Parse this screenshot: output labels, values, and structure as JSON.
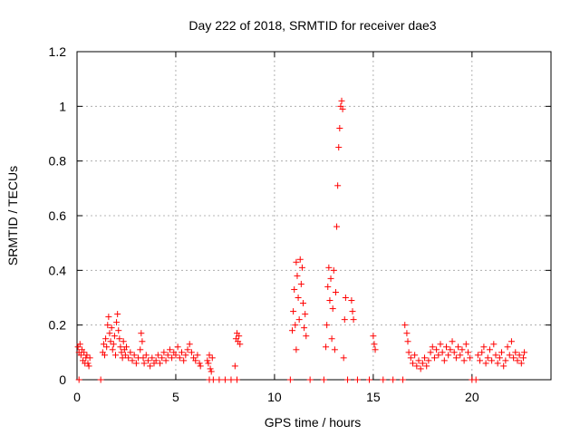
{
  "chart_data": {
    "type": "scatter",
    "title": "Day 222 of 2018, SRMTID for receiver dae3",
    "xlabel": "GPS time / hours",
    "ylabel": "SRMTID / TECUs",
    "xlim": [
      0,
      24
    ],
    "ylim": [
      0,
      1.2
    ],
    "xticks": [
      0,
      5,
      10,
      15,
      20
    ],
    "xtick_labels": [
      "0",
      "5",
      "10",
      "15",
      "20"
    ],
    "yticks": [
      0,
      0.2,
      0.4,
      0.6,
      0.8,
      1.0,
      1.2
    ],
    "ytick_labels": [
      "0",
      "0.2",
      "0.4",
      "0.6",
      "0.8",
      "1",
      "1.2"
    ],
    "grid": true,
    "marker": "+",
    "colors": {
      "series": "#ff0000",
      "grid": "#a0a0a0",
      "axis": "#000000"
    },
    "series": [
      {
        "name": "dae3",
        "points": [
          [
            0.05,
            0.12
          ],
          [
            0.1,
            0.1
          ],
          [
            0.15,
            0.13
          ],
          [
            0.2,
            0.09
          ],
          [
            0.25,
            0.11
          ],
          [
            0.3,
            0.07
          ],
          [
            0.35,
            0.1
          ],
          [
            0.4,
            0.06
          ],
          [
            0.45,
            0.08
          ],
          [
            0.5,
            0.09
          ],
          [
            0.55,
            0.06
          ],
          [
            0.6,
            0.05
          ],
          [
            0.65,
            0.08
          ],
          [
            0.1,
            0.0
          ],
          [
            1.2,
            0.0
          ],
          [
            1.3,
            0.1
          ],
          [
            1.35,
            0.13
          ],
          [
            1.4,
            0.09
          ],
          [
            1.45,
            0.15
          ],
          [
            1.5,
            0.12
          ],
          [
            1.55,
            0.2
          ],
          [
            1.6,
            0.23
          ],
          [
            1.65,
            0.17
          ],
          [
            1.7,
            0.14
          ],
          [
            1.75,
            0.19
          ],
          [
            1.8,
            0.11
          ],
          [
            1.85,
            0.13
          ],
          [
            1.9,
            0.16
          ],
          [
            1.95,
            0.09
          ],
          [
            2.0,
            0.21
          ],
          [
            2.05,
            0.24
          ],
          [
            2.1,
            0.18
          ],
          [
            2.15,
            0.15
          ],
          [
            2.2,
            0.12
          ],
          [
            2.25,
            0.1
          ],
          [
            2.3,
            0.08
          ],
          [
            2.35,
            0.14
          ],
          [
            2.4,
            0.11
          ],
          [
            2.45,
            0.09
          ],
          [
            2.5,
            0.12
          ],
          [
            2.6,
            0.08
          ],
          [
            2.7,
            0.1
          ],
          [
            2.8,
            0.07
          ],
          [
            2.9,
            0.09
          ],
          [
            3.0,
            0.06
          ],
          [
            3.1,
            0.08
          ],
          [
            3.2,
            0.11
          ],
          [
            3.25,
            0.17
          ],
          [
            3.3,
            0.14
          ],
          [
            3.35,
            0.08
          ],
          [
            3.4,
            0.06
          ],
          [
            3.5,
            0.09
          ],
          [
            3.6,
            0.07
          ],
          [
            3.7,
            0.05
          ],
          [
            3.8,
            0.08
          ],
          [
            3.9,
            0.06
          ],
          [
            4.0,
            0.07
          ],
          [
            4.1,
            0.09
          ],
          [
            4.2,
            0.06
          ],
          [
            4.3,
            0.08
          ],
          [
            4.4,
            0.1
          ],
          [
            4.5,
            0.07
          ],
          [
            4.6,
            0.09
          ],
          [
            4.7,
            0.11
          ],
          [
            4.8,
            0.08
          ],
          [
            4.9,
            0.1
          ],
          [
            5.0,
            0.09
          ],
          [
            5.1,
            0.12
          ],
          [
            5.2,
            0.08
          ],
          [
            5.3,
            0.1
          ],
          [
            5.4,
            0.07
          ],
          [
            5.5,
            0.09
          ],
          [
            5.6,
            0.11
          ],
          [
            5.7,
            0.13
          ],
          [
            5.8,
            0.1
          ],
          [
            5.9,
            0.08
          ],
          [
            6.0,
            0.07
          ],
          [
            6.1,
            0.09
          ],
          [
            6.2,
            0.06
          ],
          [
            6.25,
            0.05
          ],
          [
            6.6,
            0.07
          ],
          [
            6.65,
            0.06
          ],
          [
            6.7,
            0.09
          ],
          [
            6.75,
            0.04
          ],
          [
            6.8,
            0.03
          ],
          [
            6.85,
            0.08
          ],
          [
            6.7,
            0.0
          ],
          [
            6.9,
            0.0
          ],
          [
            7.2,
            0.0
          ],
          [
            7.5,
            0.0
          ],
          [
            7.8,
            0.0
          ],
          [
            8.0,
            0.05
          ],
          [
            8.05,
            0.15
          ],
          [
            8.1,
            0.17
          ],
          [
            8.15,
            0.14
          ],
          [
            8.2,
            0.16
          ],
          [
            8.25,
            0.13
          ],
          [
            8.1,
            0.0
          ],
          [
            10.8,
            0.0
          ],
          [
            10.9,
            0.18
          ],
          [
            10.95,
            0.25
          ],
          [
            11.0,
            0.33
          ],
          [
            11.05,
            0.2
          ],
          [
            11.1,
            0.43
          ],
          [
            11.15,
            0.38
          ],
          [
            11.2,
            0.3
          ],
          [
            11.25,
            0.22
          ],
          [
            11.3,
            0.44
          ],
          [
            11.35,
            0.35
          ],
          [
            11.4,
            0.41
          ],
          [
            11.45,
            0.28
          ],
          [
            11.5,
            0.19
          ],
          [
            11.55,
            0.24
          ],
          [
            11.6,
            0.16
          ],
          [
            11.1,
            0.11
          ],
          [
            11.8,
            0.0
          ],
          [
            12.5,
            0.0
          ],
          [
            12.6,
            0.12
          ],
          [
            12.65,
            0.2
          ],
          [
            12.7,
            0.34
          ],
          [
            12.75,
            0.41
          ],
          [
            12.8,
            0.29
          ],
          [
            12.85,
            0.37
          ],
          [
            12.9,
            0.15
          ],
          [
            12.95,
            0.26
          ],
          [
            13.0,
            0.4
          ],
          [
            13.05,
            0.11
          ],
          [
            13.1,
            0.32
          ],
          [
            13.15,
            0.56
          ],
          [
            13.2,
            0.71
          ],
          [
            13.25,
            0.85
          ],
          [
            13.3,
            0.92
          ],
          [
            13.35,
            1.0
          ],
          [
            13.4,
            1.02
          ],
          [
            13.45,
            0.99
          ],
          [
            13.5,
            0.08
          ],
          [
            13.55,
            0.22
          ],
          [
            13.6,
            0.3
          ],
          [
            13.7,
            0.0
          ],
          [
            13.9,
            0.29
          ],
          [
            13.95,
            0.25
          ],
          [
            14.0,
            0.22
          ],
          [
            14.2,
            0.0
          ],
          [
            14.8,
            0.0
          ],
          [
            15.0,
            0.16
          ],
          [
            15.05,
            0.13
          ],
          [
            15.1,
            0.11
          ],
          [
            15.5,
            0.0
          ],
          [
            16.0,
            0.0
          ],
          [
            16.5,
            0.0
          ],
          [
            16.6,
            0.2
          ],
          [
            16.7,
            0.17
          ],
          [
            16.75,
            0.14
          ],
          [
            16.8,
            0.1
          ],
          [
            16.9,
            0.08
          ],
          [
            17.0,
            0.06
          ],
          [
            17.1,
            0.09
          ],
          [
            17.2,
            0.05
          ],
          [
            17.3,
            0.07
          ],
          [
            17.4,
            0.04
          ],
          [
            17.5,
            0.06
          ],
          [
            17.6,
            0.08
          ],
          [
            17.7,
            0.05
          ],
          [
            17.8,
            0.07
          ],
          [
            17.9,
            0.1
          ],
          [
            18.0,
            0.12
          ],
          [
            18.1,
            0.08
          ],
          [
            18.2,
            0.11
          ],
          [
            18.3,
            0.09
          ],
          [
            18.4,
            0.13
          ],
          [
            18.5,
            0.1
          ],
          [
            18.6,
            0.07
          ],
          [
            18.7,
            0.12
          ],
          [
            18.8,
            0.09
          ],
          [
            18.9,
            0.11
          ],
          [
            19.0,
            0.14
          ],
          [
            19.1,
            0.1
          ],
          [
            19.2,
            0.08
          ],
          [
            19.3,
            0.12
          ],
          [
            19.4,
            0.09
          ],
          [
            19.5,
            0.11
          ],
          [
            19.6,
            0.07
          ],
          [
            19.7,
            0.13
          ],
          [
            19.8,
            0.1
          ],
          [
            19.9,
            0.08
          ],
          [
            20.0,
            0.0
          ],
          [
            20.2,
            0.0
          ],
          [
            20.3,
            0.09
          ],
          [
            20.4,
            0.07
          ],
          [
            20.5,
            0.1
          ],
          [
            20.6,
            0.12
          ],
          [
            20.7,
            0.06
          ],
          [
            20.8,
            0.08
          ],
          [
            20.9,
            0.11
          ],
          [
            21.0,
            0.07
          ],
          [
            21.1,
            0.13
          ],
          [
            21.2,
            0.09
          ],
          [
            21.3,
            0.06
          ],
          [
            21.4,
            0.08
          ],
          [
            21.5,
            0.1
          ],
          [
            21.6,
            0.05
          ],
          [
            21.7,
            0.07
          ],
          [
            21.8,
            0.12
          ],
          [
            21.9,
            0.09
          ],
          [
            22.0,
            0.14
          ],
          [
            22.1,
            0.08
          ],
          [
            22.2,
            0.1
          ],
          [
            22.3,
            0.07
          ],
          [
            22.4,
            0.09
          ],
          [
            22.5,
            0.06
          ],
          [
            22.6,
            0.08
          ],
          [
            22.65,
            0.1
          ]
        ]
      }
    ]
  }
}
